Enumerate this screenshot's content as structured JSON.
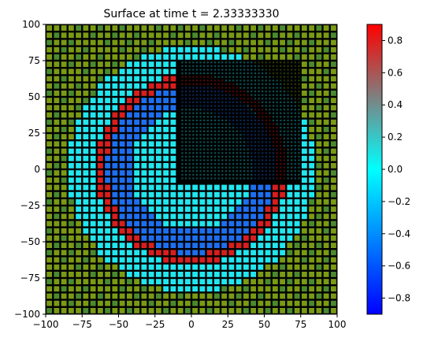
{
  "chart_data": {
    "type": "heatmap",
    "title": "Surface at time t =     2.33333330",
    "xlabel": "",
    "ylabel": "",
    "xlim": [
      -100,
      100
    ],
    "ylim": [
      -100,
      100
    ],
    "xticks": [
      "−100",
      "−75",
      "−50",
      "−25",
      "0",
      "25",
      "50",
      "75",
      "100"
    ],
    "xtick_values": [
      -100,
      -75,
      -50,
      -25,
      0,
      25,
      50,
      75,
      100
    ],
    "yticks": [
      "100",
      "75",
      "50",
      "25",
      "0",
      "−25",
      "−50",
      "−75",
      "−100"
    ],
    "ytick_values": [
      100,
      75,
      50,
      25,
      0,
      -25,
      -50,
      -75,
      -100
    ],
    "colorbar": {
      "range": [
        -0.9,
        0.9
      ],
      "ticks": [
        "0.8",
        "0.6",
        "0.4",
        "0.2",
        "0.0",
        "−0.2",
        "−0.4",
        "−0.6",
        "−0.8"
      ],
      "tick_values": [
        0.8,
        0.6,
        0.4,
        0.2,
        0.0,
        -0.2,
        -0.4,
        -0.6,
        -0.8
      ],
      "colors": [
        "#0000ff",
        "#00ffff",
        "#ff0000"
      ]
    },
    "grid": {
      "coarse_cell_size": 5,
      "fine_cell_size": 2.5,
      "fine_region": {
        "x": [
          -7.5,
          75
        ],
        "y": [
          -7.5,
          75
        ]
      }
    },
    "field": {
      "background_value": 0.45,
      "disk_value": 0.0,
      "disk_radius": 85,
      "ring_value": 0.9,
      "ring_radius": 62,
      "ring_width": 6,
      "trough_value": -0.4,
      "trough_radius": 50,
      "trough_width": 8
    },
    "colors": {
      "background_cell": "#7a9a14",
      "background_cell_alt": "#4a8a2e",
      "disk_cell": "#22e6ef",
      "trough_cell": "#1e6ff0",
      "ring_cell": "#d81e1e",
      "cell_edge": "#000000"
    }
  }
}
